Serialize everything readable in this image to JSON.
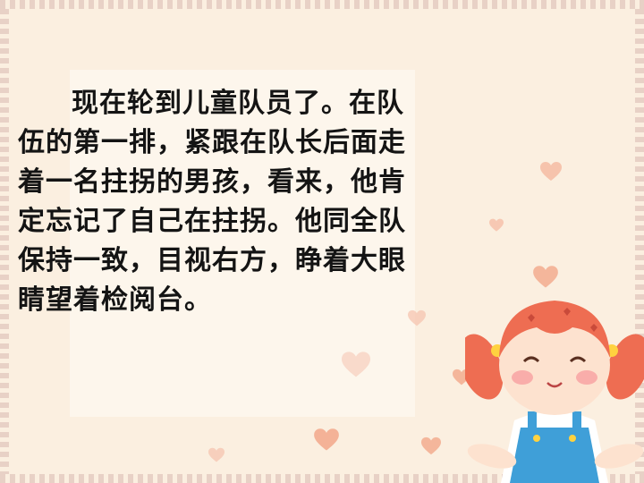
{
  "slide": {
    "lines": [
      "现在轮到儿童队员了。在队",
      "伍的第一排，紧跟在队长后面走",
      "着一名拄拐的男孩，看来，他肯",
      "定忘记了自己在拄拐。他同全队",
      "保持一致，目视右方，睁着大眼",
      "睛望着检阅台。"
    ]
  },
  "colors": {
    "background": "#fbefe0",
    "panel": "#fdf6ec",
    "heart": "#f2a78a",
    "hair": "#f06a4f",
    "overalls": "#3f9fd8"
  },
  "icons": [
    "heart-icon",
    "cartoon-girl"
  ]
}
